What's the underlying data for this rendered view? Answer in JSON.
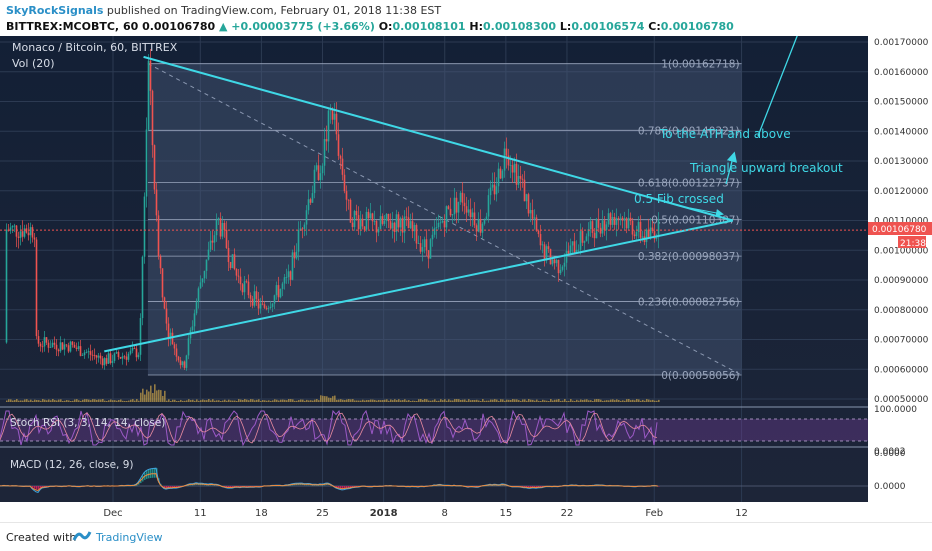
{
  "header": {
    "author": "SkyRockSignals",
    "published": "published on TradingView.com, February 01, 2018 11:38 EST",
    "symbol": "BITTREX:MCOBTC, 60",
    "last": "0.00106780",
    "change": "▲ +0.00003775 (+3.66%)",
    "o_label": "O:",
    "o": "0.00108101",
    "h_label": "H:",
    "h": "0.00108300",
    "l_label": "L:",
    "l": "0.00106574",
    "c_label": "C:",
    "c": "0.00106780"
  },
  "pane_labels": {
    "main": "Monaco / Bitcoin, 60, BITTREX",
    "vol": "Vol (20)",
    "rsi": "Stoch RSI (3, 3, 14, 14, close)",
    "macd": "MACD (12, 26, close, 9)"
  },
  "price_badge": {
    "value": "0.00106780",
    "countdown": "21:38"
  },
  "annotations": {
    "ath": "To the ATH and above",
    "breakout": "Triangle upward breakout",
    "fib": "0.5 Fib crossed"
  },
  "fib_levels": [
    {
      "ratio": "1",
      "value": 0.00162718,
      "text": "1(0.00162718)"
    },
    {
      "ratio": "0.786",
      "value": 0.00140321,
      "text": "0.786(0.00140321)"
    },
    {
      "ratio": "0.618",
      "value": 0.00122737,
      "text": "0.618(0.00122737)"
    },
    {
      "ratio": "0.5",
      "value": 0.00110387,
      "text": "0.5(0.00110387)"
    },
    {
      "ratio": "0.382",
      "value": 0.00098037,
      "text": "0.382(0.00098037)"
    },
    {
      "ratio": "0.236",
      "value": 0.00082756,
      "text": "0.236(0.00082756)"
    },
    {
      "ratio": "0",
      "value": 0.00058056,
      "text": "0(0.00058056)"
    }
  ],
  "footer": {
    "created": "Created with",
    "brand": "TradingView"
  },
  "colors": {
    "up": "#26a69a",
    "down": "#ef5350",
    "trend": "#3fd8e6",
    "rsi_k": "#7b3fa0",
    "rsi_d": "#e88aa0"
  },
  "chart_data": {
    "type": "candlestick",
    "title": "Monaco / Bitcoin, 60, BITTREX",
    "y_axis_ticks": [
      "0.00170000",
      "0.00160000",
      "0.00150000",
      "0.00140000",
      "0.00130000",
      "0.00120000",
      "0.00110000",
      "0.00100000",
      "0.00090000",
      "0.00080000",
      "0.00070000",
      "0.00060000",
      "0.00050000"
    ],
    "ylim": [
      0.0005,
      0.0017
    ],
    "x_ticks": [
      {
        "label": "Dec",
        "day": 0
      },
      {
        "label": "11",
        "day": 10
      },
      {
        "label": "18",
        "day": 17
      },
      {
        "label": "25",
        "day": 24
      },
      {
        "label": "2018",
        "day": 31
      },
      {
        "label": "8",
        "day": 38
      },
      {
        "label": "15",
        "day": 45
      },
      {
        "label": "22",
        "day": 52
      },
      {
        "label": "Feb",
        "day": 62
      },
      {
        "label": "12",
        "day": 72
      }
    ],
    "price_path_days": [
      -9,
      -5,
      -1,
      3,
      4,
      5,
      6,
      8,
      10,
      12,
      14,
      17,
      20,
      22,
      24,
      25,
      27,
      30,
      33,
      36,
      38,
      40,
      42,
      44,
      45,
      47,
      49,
      51,
      53,
      56,
      58,
      61,
      62
    ],
    "price_path_values": [
      0.00069,
      0.00068,
      0.00063,
      0.00066,
      0.00163,
      0.00105,
      0.00075,
      0.0006,
      0.0009,
      0.0011,
      0.00092,
      0.0008,
      0.0009,
      0.00114,
      0.00132,
      0.00149,
      0.00112,
      0.00108,
      0.0011,
      0.001,
      0.00112,
      0.00118,
      0.00108,
      0.00124,
      0.00135,
      0.0012,
      0.001,
      0.00095,
      0.00102,
      0.0011,
      0.00112,
      0.00104,
      0.00107
    ],
    "trendlines": [
      {
        "name": "upper",
        "points": [
          [
            3.5,
            0.00165
          ],
          [
            71,
            0.0011
          ]
        ]
      },
      {
        "name": "lower",
        "points": [
          [
            -1,
            0.00066
          ],
          [
            71,
            0.0011
          ]
        ]
      }
    ],
    "stoch_rsi": {
      "levels": [
        20,
        80
      ],
      "axis_labels": [
        "100.0000",
        "0.0000"
      ]
    },
    "macd": {
      "axis_labels": [
        "0.0002",
        "0.0000"
      ]
    }
  }
}
